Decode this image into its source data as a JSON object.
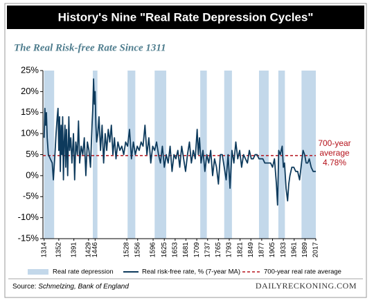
{
  "chart_data": {
    "type": "line",
    "title": "History's Nine \"Real Rate Depression Cycles\"",
    "subtitle": "The Real Risk-free Rate Since 1311",
    "x": [
      1314,
      1316,
      1318,
      1320,
      1322,
      1325,
      1330,
      1335,
      1338,
      1342,
      1345,
      1348,
      1350,
      1352,
      1354,
      1356,
      1358,
      1360,
      1362,
      1364,
      1366,
      1368,
      1370,
      1372,
      1375,
      1378,
      1380,
      1383,
      1386,
      1390,
      1393,
      1396,
      1400,
      1403,
      1406,
      1410,
      1414,
      1418,
      1422,
      1426,
      1430,
      1434,
      1438,
      1440,
      1442,
      1444,
      1446,
      1448,
      1450,
      1453,
      1456,
      1460,
      1464,
      1468,
      1472,
      1476,
      1480,
      1484,
      1488,
      1492,
      1496,
      1500,
      1505,
      1510,
      1515,
      1520,
      1525,
      1530,
      1535,
      1540,
      1545,
      1550,
      1555,
      1560,
      1565,
      1570,
      1575,
      1580,
      1585,
      1590,
      1595,
      1600,
      1605,
      1610,
      1615,
      1620,
      1625,
      1630,
      1635,
      1640,
      1645,
      1650,
      1655,
      1660,
      1665,
      1670,
      1675,
      1680,
      1685,
      1690,
      1695,
      1700,
      1705,
      1710,
      1713,
      1716,
      1720,
      1725,
      1730,
      1735,
      1740,
      1745,
      1750,
      1755,
      1760,
      1765,
      1770,
      1775,
      1780,
      1785,
      1790,
      1795,
      1800,
      1805,
      1810,
      1815,
      1820,
      1825,
      1830,
      1835,
      1840,
      1845,
      1850,
      1855,
      1860,
      1865,
      1870,
      1875,
      1880,
      1885,
      1890,
      1895,
      1900,
      1905,
      1910,
      1915,
      1918,
      1921,
      1925,
      1930,
      1933,
      1936,
      1940,
      1944,
      1947,
      1950,
      1955,
      1960,
      1965,
      1970,
      1975,
      1980,
      1984,
      1988,
      1992,
      1996,
      2000,
      2005,
      2010,
      2017
    ],
    "series": [
      {
        "name": "Real risk-free rate, % (7-year MA)",
        "color": "#0d3a5c",
        "values": [
          9,
          16,
          12,
          15,
          9,
          5,
          4,
          3,
          -1,
          5,
          10,
          14,
          16,
          6,
          14,
          1,
          12,
          5,
          14,
          -1,
          8,
          12,
          2,
          11,
          0,
          14,
          6,
          9,
          3,
          10,
          -1,
          8,
          5,
          13,
          3,
          7,
          5,
          9,
          0,
          8,
          6,
          2,
          12,
          16,
          23,
          17,
          20,
          12,
          8,
          10,
          14,
          6,
          12,
          3,
          10,
          6,
          11,
          8,
          12,
          5,
          9,
          4,
          8,
          6,
          7,
          5,
          8,
          7,
          11,
          4,
          8,
          5,
          7,
          6,
          8,
          7,
          12,
          5,
          9,
          3,
          7,
          6,
          8,
          5,
          3,
          7,
          2,
          5,
          3,
          7,
          1,
          5,
          4,
          6,
          2,
          7,
          4,
          1,
          5,
          8,
          3,
          6,
          4,
          11,
          5,
          9,
          3,
          6,
          1,
          5,
          3,
          6,
          0,
          4,
          2,
          -2,
          5,
          5,
          2,
          -1,
          5,
          -3,
          6,
          3,
          8,
          4,
          6,
          2,
          5,
          4,
          3,
          6,
          4,
          4,
          5,
          5,
          4,
          4,
          4,
          3,
          3,
          3,
          3,
          2,
          4,
          -2,
          -7,
          6,
          5,
          7,
          2,
          3,
          -3,
          -6,
          -2,
          0,
          2,
          2,
          1,
          1,
          -1,
          3,
          6,
          5,
          3,
          3,
          4,
          2,
          1,
          1
        ]
      }
    ],
    "bands": {
      "name": "Real rate depression",
      "color": "#c3d8ea",
      "ranges": [
        [
          1314,
          1340
        ],
        [
          1440,
          1452
        ],
        [
          1530,
          1550
        ],
        [
          1600,
          1630
        ],
        [
          1718,
          1735
        ],
        [
          1780,
          1800
        ],
        [
          1870,
          1895
        ],
        [
          1920,
          1937
        ],
        [
          1980,
          2017
        ]
      ]
    },
    "reference_line": {
      "name": "700-year real rate average",
      "value": 4.78,
      "label": "4.78%",
      "color": "#b5121b",
      "annotation": [
        "700-year",
        "average"
      ]
    },
    "xlim": [
      1311,
      2017
    ],
    "xticks": [
      1314,
      1352,
      1391,
      1429,
      1446,
      1528,
      1556,
      1596,
      1625,
      1653,
      1681,
      1709,
      1737,
      1765,
      1793,
      1821,
      1849,
      1877,
      1905,
      1933,
      1961,
      1989,
      2017
    ],
    "ylim": [
      -15,
      25
    ],
    "yticks": [
      {
        "value": 25,
        "label": "25%"
      },
      {
        "value": 20,
        "label": "20%"
      },
      {
        "value": 15,
        "label": "15%"
      },
      {
        "value": 10,
        "label": "10%"
      },
      {
        "value": 5,
        "label": "5%"
      },
      {
        "value": 0,
        "label": "0%"
      },
      {
        "value": -5,
        "label": "-5%"
      },
      {
        "value": -10,
        "label": "-10%"
      },
      {
        "value": -15,
        "label": "-15%"
      }
    ],
    "source": {
      "prefix": "Source:",
      "text": "Schmelzing, Bank of England"
    },
    "footer": "DAILYRECKONING.COM"
  }
}
